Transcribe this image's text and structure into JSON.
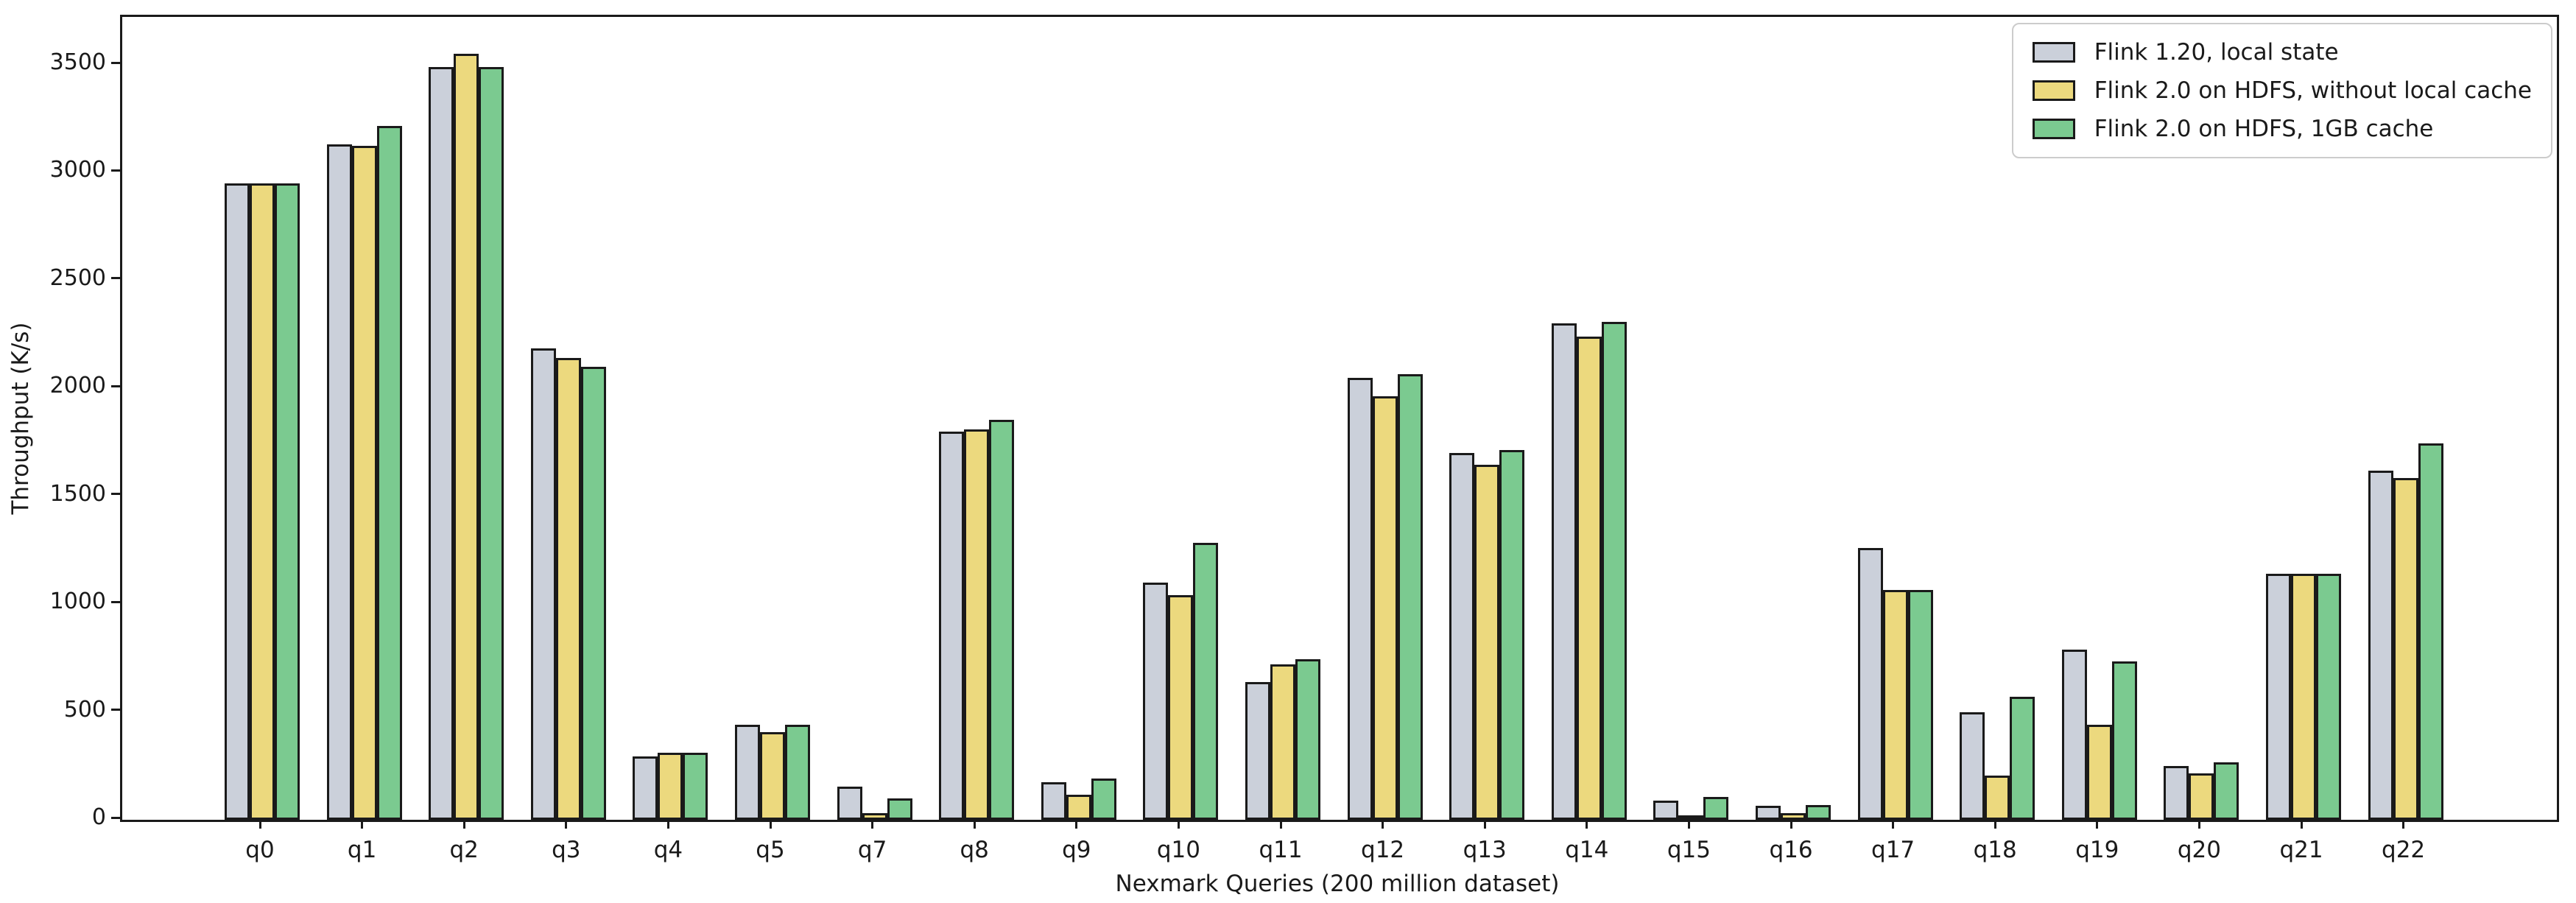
{
  "chart_data": {
    "type": "bar",
    "title": "",
    "xlabel": "Nexmark Queries (200 million dataset)",
    "ylabel": "Throughput (K/s)",
    "ylim": [
      0,
      3722
    ],
    "yticks": [
      0,
      500,
      1000,
      1500,
      2000,
      2500,
      3000,
      3500
    ],
    "grid": false,
    "legend_position": "upper right",
    "bar_edge_color": "#1a1a1a",
    "categories": [
      "q0",
      "q1",
      "q2",
      "q3",
      "q4",
      "q5",
      "q7",
      "q8",
      "q9",
      "q10",
      "q11",
      "q12",
      "q13",
      "q14",
      "q15",
      "q16",
      "q17",
      "q18",
      "q19",
      "q20",
      "q21",
      "q22"
    ],
    "series": [
      {
        "name": "Flink 1.20, local state",
        "color": "#cbd0da",
        "values": [
          2950,
          3130,
          3490,
          2185,
          295,
          440,
          155,
          1800,
          175,
          1100,
          640,
          2050,
          1700,
          2300,
          90,
          65,
          1260,
          500,
          790,
          250,
          1140,
          1620
        ]
      },
      {
        "name": "Flink 2.0 on HDFS, without local cache",
        "color": "#ecd97e",
        "values": [
          2950,
          3125,
          3550,
          2140,
          310,
          405,
          30,
          1810,
          115,
          1040,
          720,
          1965,
          1645,
          2240,
          15,
          30,
          1065,
          205,
          440,
          215,
          1140,
          1585
        ]
      },
      {
        "name": "Flink 2.0 on HDFS, 1GB cache",
        "color": "#7bca90",
        "values": [
          2950,
          3215,
          3490,
          2100,
          310,
          440,
          100,
          1855,
          190,
          1285,
          745,
          2065,
          1715,
          2310,
          105,
          70,
          1065,
          570,
          735,
          265,
          1140,
          1745
        ]
      }
    ]
  }
}
